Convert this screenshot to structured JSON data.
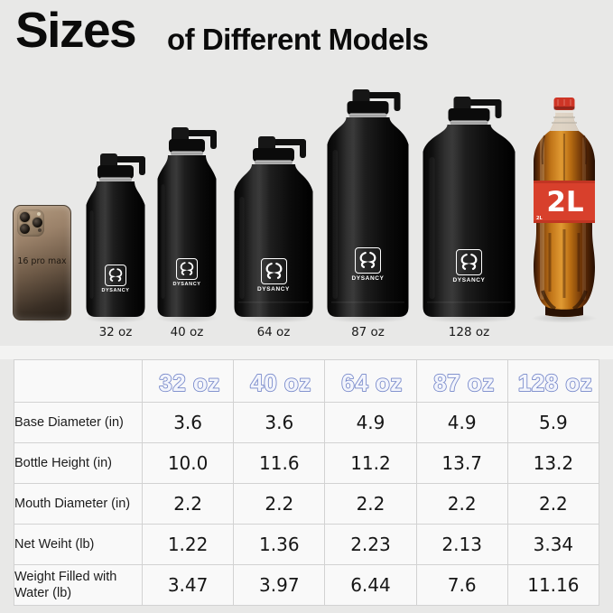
{
  "title": {
    "main": "Sizes",
    "sub": "of Different Models"
  },
  "phone": {
    "label": "16 pro max"
  },
  "brand": "DYSANCY",
  "bottles": [
    {
      "label": "32 oz"
    },
    {
      "label": "40 oz"
    },
    {
      "label": "64 oz"
    },
    {
      "label": "87 oz"
    },
    {
      "label": "128 oz"
    }
  ],
  "cola": {
    "label": "2L",
    "side_label": "2L"
  },
  "table": {
    "headers": [
      "32 oz",
      "40 oz",
      "64 oz",
      "87 oz",
      "128 oz"
    ],
    "rows": [
      {
        "label": "Base Diameter (in)",
        "values": [
          "3.6",
          "3.6",
          "4.9",
          "4.9",
          "5.9"
        ]
      },
      {
        "label": "Bottle Height (in)",
        "values": [
          "10.0",
          "11.6",
          "11.2",
          "13.7",
          "13.2"
        ]
      },
      {
        "label": "Mouth Diameter (in)",
        "values": [
          "2.2",
          "2.2",
          "2.2",
          "2.2",
          "2.2"
        ]
      },
      {
        "label": "Net Weiht (lb)",
        "values": [
          "1.22",
          "1.36",
          "2.23",
          "2.13",
          "3.34"
        ]
      },
      {
        "label": "Weight Filled with Water (lb)",
        "values": [
          "3.47",
          "3.97",
          "6.44",
          "7.6",
          "11.16"
        ]
      }
    ]
  },
  "colors": {
    "page_bg": "#e8e8e7",
    "table_cell_bg": "#f9f9f9",
    "table_border": "#d2d2d2",
    "header_fill": "#f3f5fc",
    "header_outline": "#7486c9",
    "bottle_black": "#0d0d0d",
    "cola_red": "#d8402c",
    "title_text": "#0b0b0b"
  },
  "chart_data": {
    "type": "table",
    "title": "Sizes of Different Models",
    "columns": [
      "32 oz",
      "40 oz",
      "64 oz",
      "87 oz",
      "128 oz"
    ],
    "rows": [
      {
        "label": "Base Diameter (in)",
        "values": [
          3.6,
          3.6,
          4.9,
          4.9,
          5.9
        ]
      },
      {
        "label": "Bottle Height (in)",
        "values": [
          10.0,
          11.6,
          11.2,
          13.7,
          13.2
        ]
      },
      {
        "label": "Mouth Diameter (in)",
        "values": [
          2.2,
          2.2,
          2.2,
          2.2,
          2.2
        ]
      },
      {
        "label": "Net Weiht (lb)",
        "values": [
          1.22,
          1.36,
          2.23,
          2.13,
          3.34
        ]
      },
      {
        "label": "Weight Filled with Water (lb)",
        "values": [
          3.47,
          3.97,
          6.44,
          7.6,
          11.16
        ]
      }
    ]
  }
}
